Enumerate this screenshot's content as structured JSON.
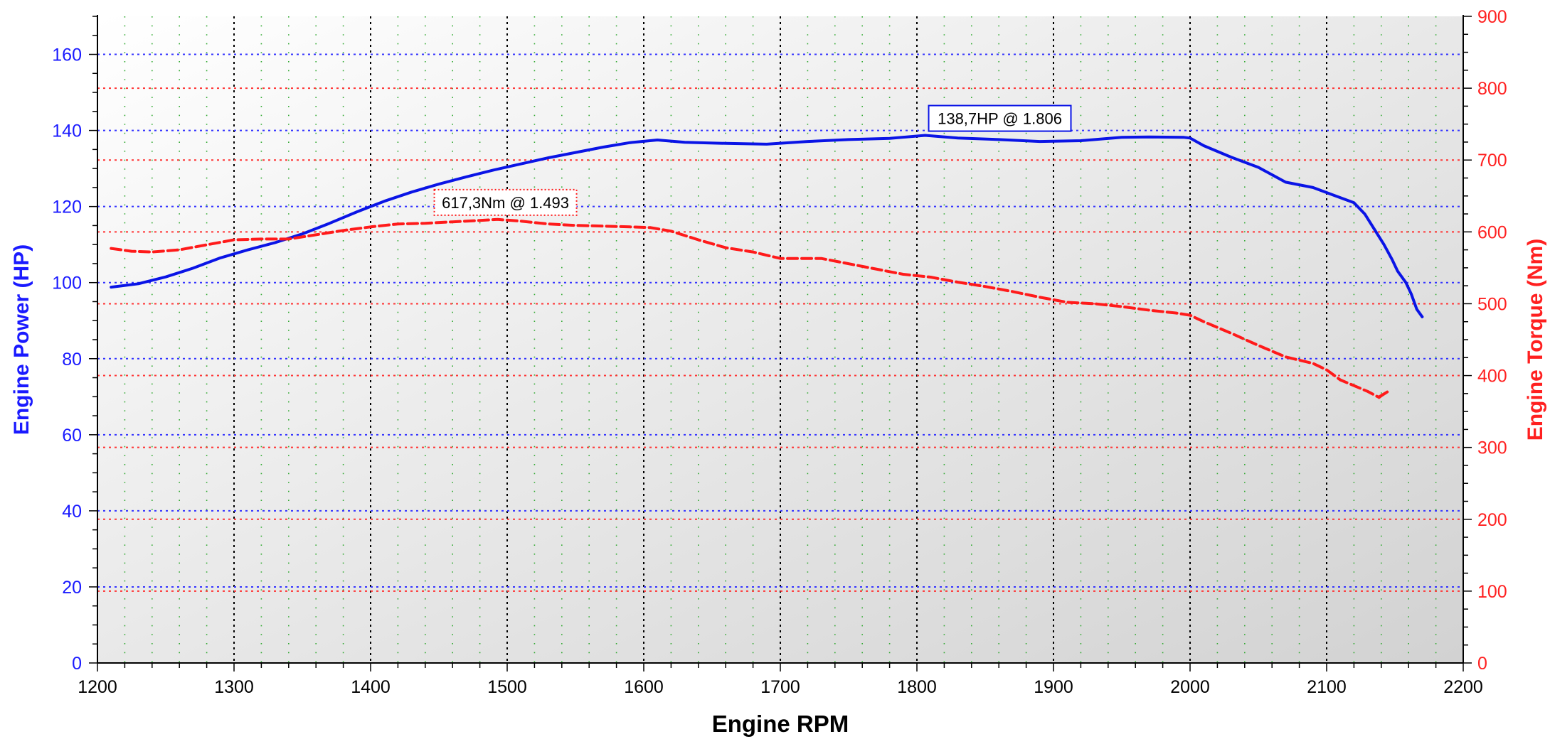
{
  "chart_data": {
    "type": "line",
    "xlabel": "Engine RPM",
    "ylabel_left": "Engine Power (HP)",
    "ylabel_right": "Engine Torque (Nm)",
    "xlim": [
      1200,
      2200
    ],
    "ylim_left": [
      0,
      170
    ],
    "ylim_right": [
      0,
      900
    ],
    "x_ticks": [
      "1200",
      "1300",
      "1400",
      "1500",
      "1600",
      "1700",
      "1800",
      "1900",
      "2000",
      "2100",
      "2200"
    ],
    "y_left_ticks": [
      "0",
      "20",
      "40",
      "60",
      "80",
      "100",
      "120",
      "140",
      "160"
    ],
    "y_right_ticks": [
      "0",
      "100",
      "200",
      "300",
      "400",
      "500",
      "600",
      "700",
      "800",
      "900"
    ],
    "grid": true,
    "colors": {
      "power": "#0a14e6",
      "torque": "#ff1a1a",
      "grid_blue": "#3333ff",
      "grid_red": "#ff3333",
      "grid_green": "#33aa33"
    },
    "series": [
      {
        "axis": "left",
        "style": "solid",
        "x": [
          1210,
          1230,
          1250,
          1270,
          1290,
          1310,
          1330,
          1350,
          1370,
          1390,
          1410,
          1430,
          1450,
          1470,
          1490,
          1510,
          1530,
          1550,
          1570,
          1590,
          1610,
          1630,
          1660,
          1690,
          1720,
          1750,
          1780,
          1806,
          1830,
          1860,
          1890,
          1920,
          1950,
          1970,
          1995,
          2000,
          2010,
          2030,
          2050,
          2070,
          2090,
          2105,
          2120,
          2128,
          2135,
          2142,
          2148,
          2152,
          2158,
          2162,
          2166,
          2170
        ],
        "values": [
          98.8,
          99.7,
          101.5,
          103.8,
          106.5,
          108.6,
          110.5,
          112.8,
          115.6,
          118.6,
          121.4,
          123.8,
          125.9,
          127.8,
          129.6,
          131.2,
          132.8,
          134.2,
          135.6,
          136.8,
          137.5,
          136.9,
          136.6,
          136.4,
          137.1,
          137.6,
          137.9,
          138.7,
          138.0,
          137.6,
          137.1,
          137.3,
          138.2,
          138.3,
          138.2,
          138.0,
          136.0,
          133.0,
          130.3,
          126.4,
          125.0,
          123.0,
          121.0,
          118.0,
          114.0,
          110.0,
          106.0,
          103.0,
          100.0,
          97.0,
          93.0,
          91.0
        ]
      },
      {
        "axis": "right",
        "style": "dashed",
        "x": [
          1210,
          1225,
          1240,
          1260,
          1280,
          1300,
          1320,
          1340,
          1360,
          1380,
          1400,
          1420,
          1440,
          1460,
          1480,
          1493,
          1510,
          1530,
          1550,
          1570,
          1590,
          1605,
          1620,
          1640,
          1660,
          1680,
          1700,
          1730,
          1760,
          1790,
          1810,
          1830,
          1850,
          1870,
          1890,
          1910,
          1930,
          1950,
          1970,
          1990,
          2000,
          2010,
          2030,
          2050,
          2070,
          2090,
          2100,
          2110,
          2120,
          2130,
          2138,
          2145,
          2140,
          2136
        ],
        "values": [
          577,
          573,
          572,
          575,
          582,
          589,
          590,
          590,
          596,
          602,
          607,
          611,
          612,
          614,
          616,
          617.3,
          615,
          611,
          609,
          608,
          607,
          606,
          601,
          589,
          578,
          572,
          563,
          563,
          552,
          541,
          537,
          530,
          524,
          517,
          509,
          502,
          500,
          496,
          491,
          487,
          484,
          475,
          459,
          442,
          426,
          417,
          408,
          394,
          386,
          378,
          370,
          378,
          372,
          366
        ]
      }
    ],
    "annotations": [
      {
        "text": "138,7HP @ 1.806",
        "series": "power",
        "x": 1806,
        "y": 138.7,
        "border": "solid"
      },
      {
        "text": "617,3Nm @ 1.493",
        "series": "torque",
        "x": 1493,
        "y": 617.3,
        "border": "dotted"
      }
    ]
  }
}
